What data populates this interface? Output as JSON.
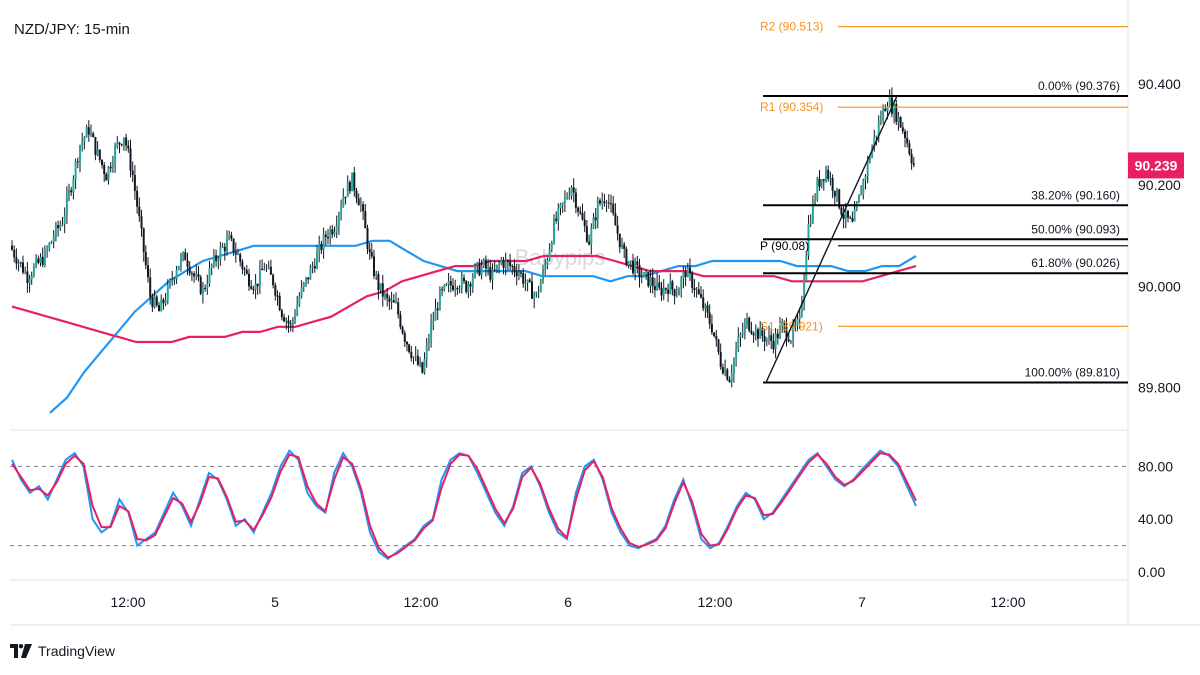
{
  "chart_data": {
    "type": "line",
    "title": "NZD/JPY: 15-min",
    "watermark": "Babypips",
    "price_axis": {
      "ylim": [
        89.72,
        90.55
      ],
      "ticks": [
        "90.400",
        "90.200",
        "90.000",
        "89.800"
      ],
      "tick_values": [
        90.4,
        90.2,
        90.0,
        89.8
      ]
    },
    "current_price": {
      "label": "90.239",
      "value": 90.239,
      "color": "#e91e63"
    },
    "x_tick_labels": [
      "12:00",
      "5",
      "12:00",
      "6",
      "12:00",
      "7",
      "12:00"
    ],
    "pivot_levels": [
      {
        "label": "R2 (90.513)",
        "value": 90.513,
        "color": "#f7931a"
      },
      {
        "label": "R1 (90.354)",
        "value": 90.354,
        "color": "#f7931a"
      },
      {
        "label": "P (90.08)",
        "value": 90.08,
        "color": "#000000"
      },
      {
        "label": "S1 (89.921)",
        "value": 89.921,
        "color": "#f7931a"
      }
    ],
    "fib_levels": [
      {
        "label": "0.00% (90.376)",
        "value": 90.376
      },
      {
        "label": "38.20% (90.160)",
        "value": 90.16
      },
      {
        "label": "50.00% (90.093)",
        "value": 90.093
      },
      {
        "label": "61.80% (90.026)",
        "value": 90.026
      },
      {
        "label": "100.00% (89.810)",
        "value": 89.81
      }
    ],
    "price_series": [
      90.08,
      90.05,
      90.02,
      90.04,
      90.06,
      90.1,
      90.13,
      90.2,
      90.28,
      90.31,
      90.26,
      90.22,
      90.27,
      90.3,
      90.22,
      90.1,
      89.98,
      89.95,
      89.99,
      90.04,
      90.06,
      90.02,
      89.99,
      90.04,
      90.07,
      90.09,
      90.06,
      90.02,
      90.0,
      90.04,
      90.01,
      89.95,
      89.92,
      89.98,
      90.02,
      90.06,
      90.1,
      90.12,
      90.18,
      90.21,
      90.16,
      90.06,
      90.0,
      89.97,
      89.96,
      89.9,
      89.86,
      89.83,
      89.92,
      89.98,
      90.0,
      90.01,
      90.0,
      90.03,
      90.04,
      90.02,
      90.05,
      90.04,
      90.03,
      90.0,
      89.98,
      90.04,
      90.12,
      90.16,
      90.2,
      90.14,
      90.09,
      90.16,
      90.18,
      90.12,
      90.06,
      90.04,
      90.02,
      90.01,
      89.99,
      90.0,
      89.99,
      90.03,
      90.0,
      89.96,
      89.92,
      89.85,
      89.82,
      89.89,
      89.93,
      89.91,
      89.9,
      89.89,
      89.92,
      89.9,
      89.93,
      90.12,
      90.2,
      90.23,
      90.19,
      90.14,
      90.12,
      90.19,
      90.26,
      90.32,
      90.37,
      90.34,
      90.3,
      90.24
    ],
    "series": [
      {
        "color": "#2196f3",
        "values": [
          89.75,
          89.78,
          89.83,
          89.87,
          89.91,
          89.95,
          89.98,
          90.01,
          90.03,
          90.05,
          90.06,
          90.07,
          90.08,
          90.08,
          90.08,
          90.08,
          90.08,
          90.08,
          90.08,
          90.09,
          90.09,
          90.07,
          90.05,
          90.04,
          90.03,
          90.03,
          90.03,
          90.03,
          90.03,
          90.02,
          90.02,
          90.02,
          90.02,
          90.01,
          90.02,
          90.02,
          90.03,
          90.04,
          90.04,
          90.05,
          90.05,
          90.05,
          90.05,
          90.05,
          90.04,
          90.04,
          90.04,
          90.03,
          90.03,
          90.04,
          90.04,
          90.06
        ]
      },
      {
        "color": "#e91e63",
        "values": [
          89.96,
          89.95,
          89.94,
          89.93,
          89.92,
          89.91,
          89.9,
          89.89,
          89.89,
          89.89,
          89.9,
          89.9,
          89.9,
          89.91,
          89.91,
          89.92,
          89.92,
          89.93,
          89.94,
          89.96,
          89.98,
          89.99,
          90.01,
          90.02,
          90.03,
          90.04,
          90.04,
          90.05,
          90.05,
          90.05,
          90.06,
          90.06,
          90.06,
          90.06,
          90.05,
          90.04,
          90.03,
          90.03,
          90.03,
          90.02,
          90.02,
          90.02,
          90.02,
          90.02,
          90.01,
          90.01,
          90.01,
          90.01,
          90.01,
          90.02,
          90.03,
          90.04
        ]
      }
    ],
    "stochastic": {
      "ylim": [
        0,
        100
      ],
      "ticks": [
        "80.00",
        "40.00",
        "0.00"
      ],
      "tick_values": [
        80,
        40,
        0
      ],
      "levels": [
        80,
        20
      ],
      "k": [
        85,
        70,
        60,
        65,
        55,
        70,
        85,
        90,
        80,
        40,
        30,
        35,
        55,
        45,
        20,
        25,
        30,
        45,
        60,
        50,
        35,
        55,
        75,
        70,
        55,
        35,
        40,
        30,
        45,
        60,
        80,
        92,
        85,
        60,
        50,
        45,
        75,
        90,
        80,
        60,
        30,
        15,
        10,
        15,
        20,
        25,
        35,
        40,
        70,
        85,
        90,
        88,
        75,
        60,
        45,
        35,
        50,
        75,
        80,
        65,
        45,
        30,
        25,
        60,
        80,
        85,
        70,
        45,
        30,
        20,
        18,
        22,
        25,
        35,
        55,
        70,
        50,
        25,
        18,
        22,
        35,
        50,
        60,
        55,
        40,
        45,
        55,
        65,
        75,
        85,
        90,
        80,
        70,
        65,
        70,
        78,
        85,
        92,
        88,
        80,
        65,
        50
      ],
      "d": [
        82,
        72,
        62,
        63,
        58,
        68,
        82,
        88,
        82,
        50,
        34,
        34,
        50,
        46,
        25,
        24,
        28,
        42,
        56,
        52,
        38,
        52,
        72,
        71,
        57,
        38,
        39,
        32,
        43,
        57,
        76,
        89,
        87,
        65,
        52,
        46,
        70,
        87,
        82,
        63,
        35,
        18,
        11,
        14,
        19,
        24,
        33,
        39,
        64,
        82,
        89,
        88,
        78,
        63,
        48,
        37,
        48,
        72,
        79,
        67,
        48,
        33,
        26,
        55,
        77,
        84,
        72,
        48,
        33,
        22,
        19,
        21,
        24,
        33,
        52,
        68,
        53,
        29,
        20,
        21,
        33,
        48,
        58,
        56,
        43,
        44,
        53,
        63,
        73,
        83,
        89,
        82,
        72,
        66,
        69,
        76,
        83,
        90,
        89,
        82,
        68,
        54
      ]
    }
  },
  "footer": {
    "brand": "TradingView",
    "logo_icon": "tradingview-logo-icon"
  }
}
